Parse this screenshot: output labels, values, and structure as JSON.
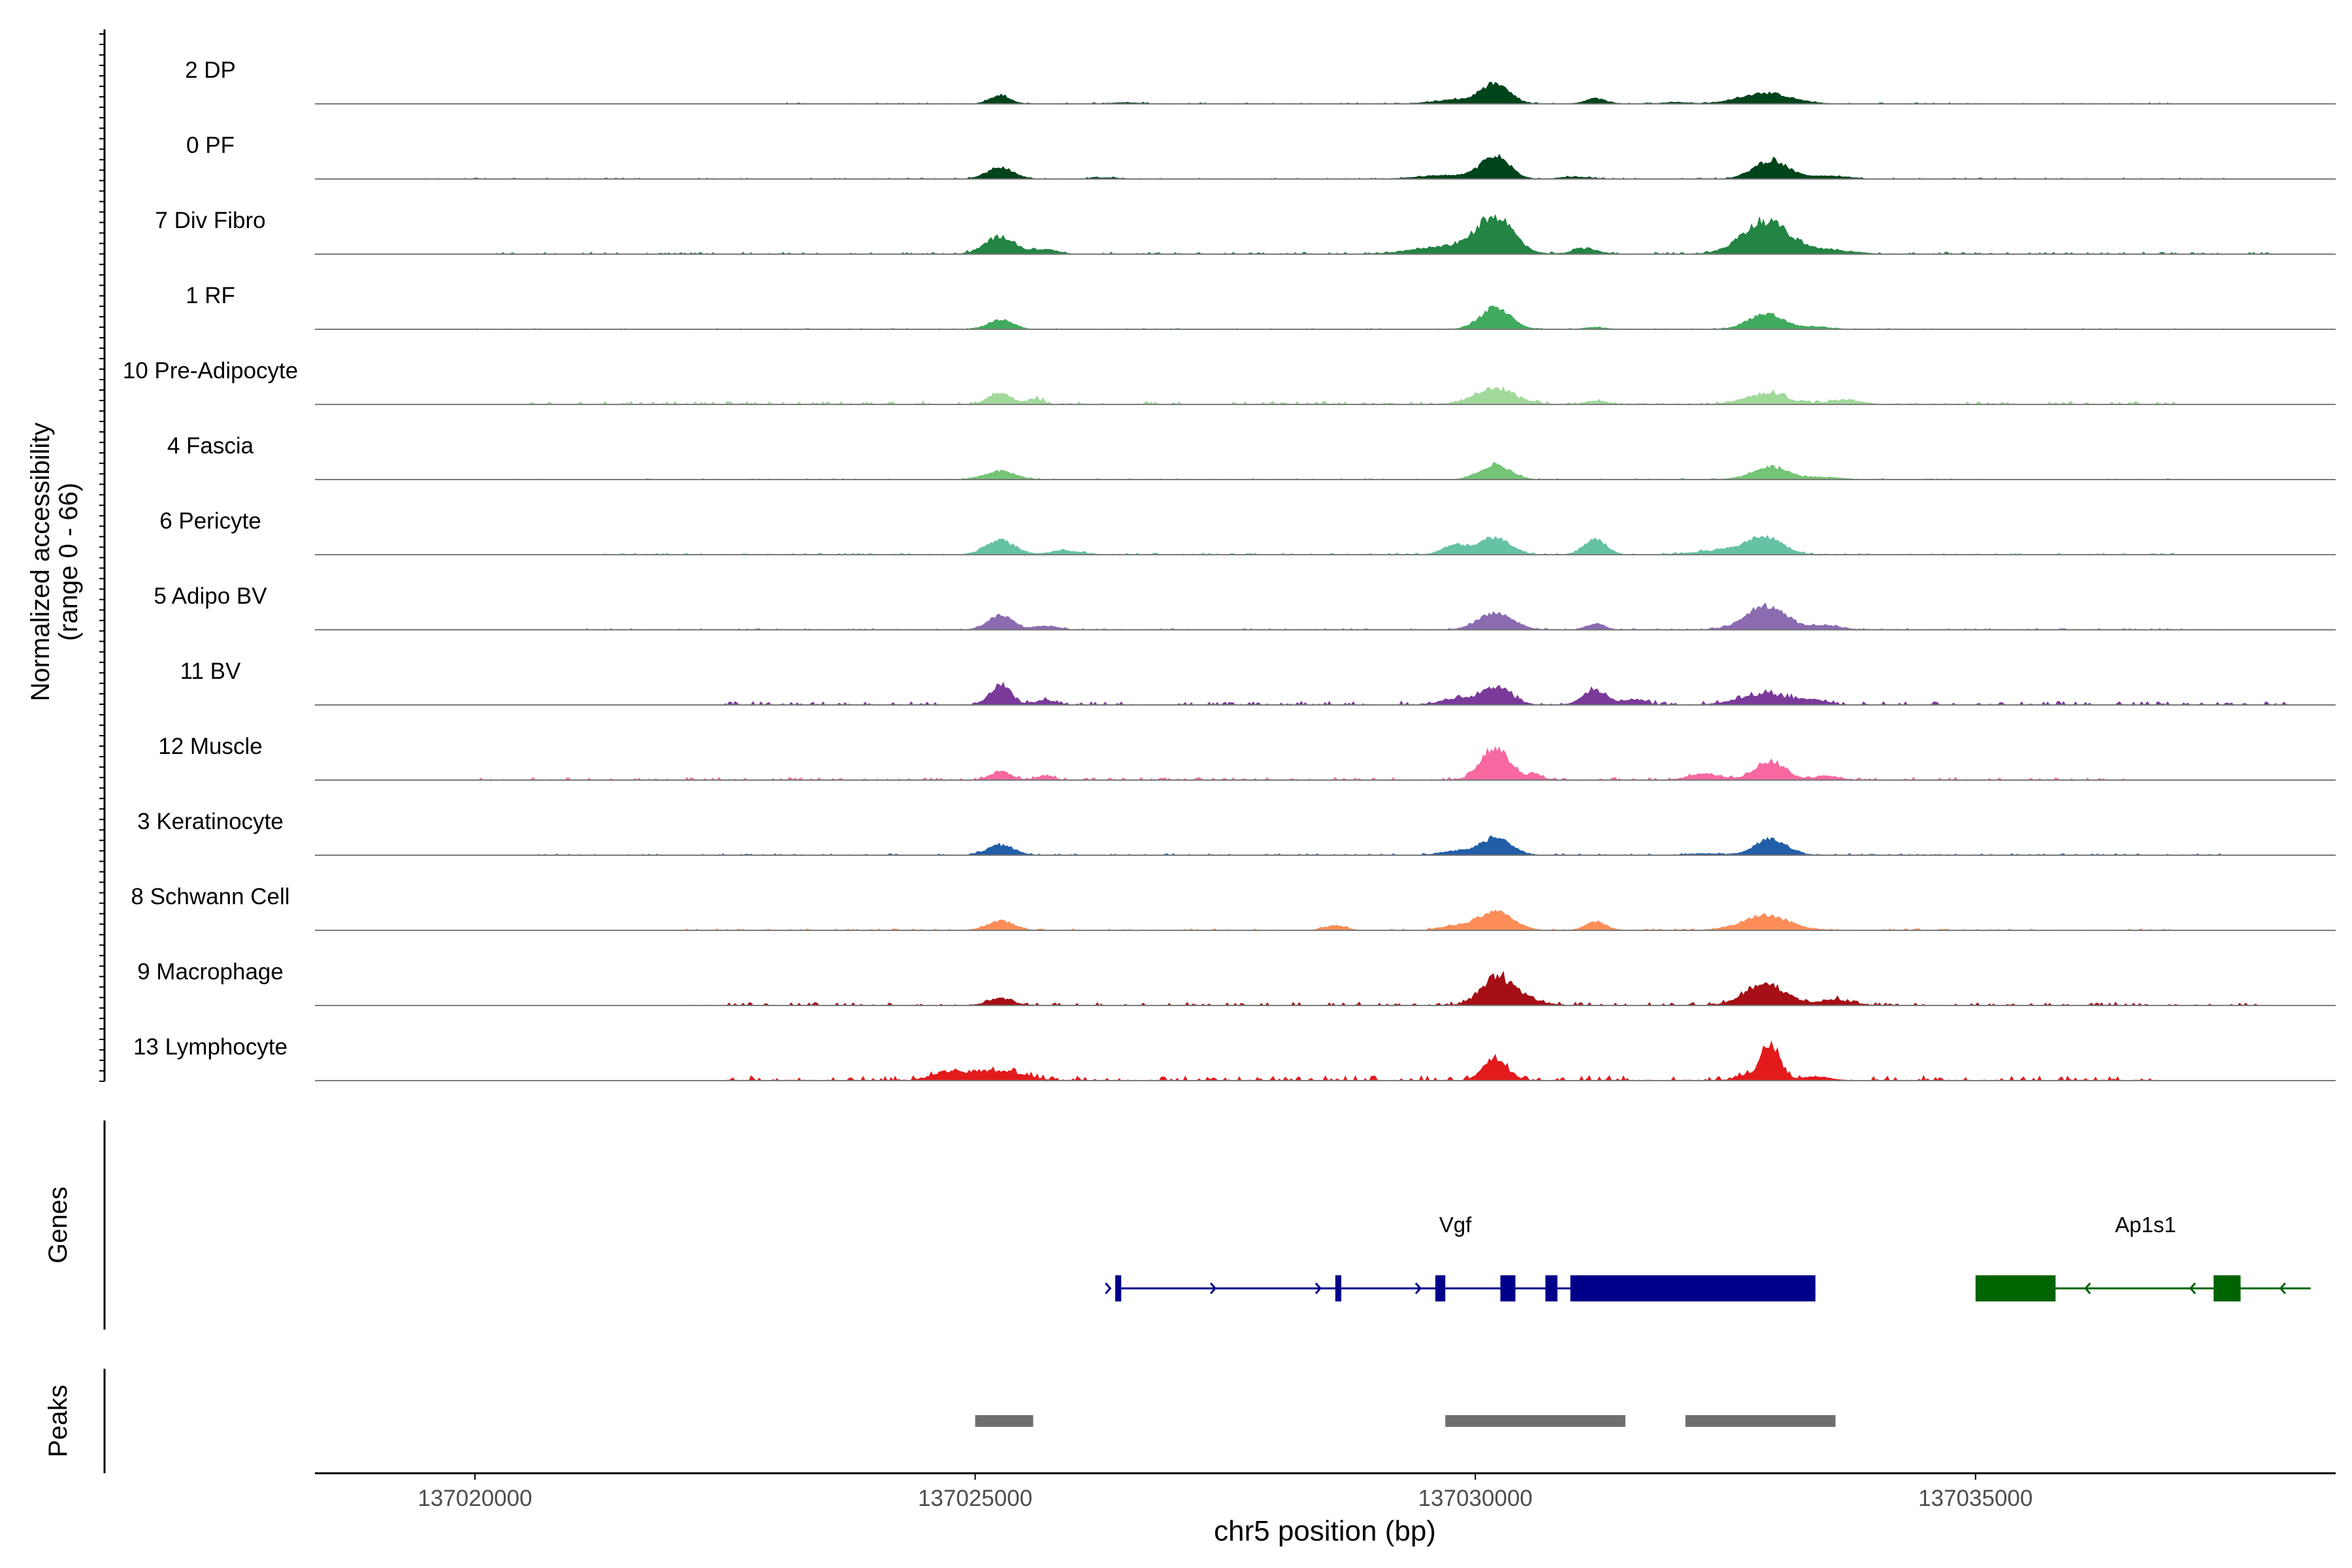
{
  "chart_data": {
    "type": "area",
    "title": "",
    "y_axis_label_line1": "Normalized accessibility",
    "y_axis_label_line2": "(range 0 - 66)",
    "y_range": [
      0,
      66
    ],
    "x_axis_label": "chr5 position (bp)",
    "x_range": [
      137018400,
      137038600
    ],
    "x_ticks": [
      {
        "value": 137020000,
        "label": "137020000"
      },
      {
        "value": 137025000,
        "label": "137025000"
      },
      {
        "value": 137030000,
        "label": "137030000"
      },
      {
        "value": 137035000,
        "label": "137035000"
      }
    ],
    "tracks": [
      {
        "name": "2 DP",
        "color": "#00441b",
        "peaks": [
          [
            137025250,
            0.22,
            100
          ],
          [
            137026500,
            0.03,
            150
          ],
          [
            137029800,
            0.1,
            220
          ],
          [
            137030200,
            0.5,
            140
          ],
          [
            137031200,
            0.14,
            100
          ],
          [
            137032000,
            0.04,
            120
          ],
          [
            137032900,
            0.28,
            250
          ]
        ],
        "noise": [
          137023000,
          137037000,
          0.02
        ]
      },
      {
        "name": "0 PF",
        "color": "#00441b",
        "peaks": [
          [
            137025250,
            0.3,
            130
          ],
          [
            137026300,
            0.03,
            150
          ],
          [
            137029700,
            0.1,
            250
          ],
          [
            137030200,
            0.6,
            140
          ],
          [
            137031000,
            0.05,
            150
          ],
          [
            137032950,
            0.48,
            170
          ],
          [
            137033500,
            0.08,
            200
          ]
        ],
        "noise": [
          137019500,
          137037500,
          0.02
        ]
      },
      {
        "name": "7 Div Fibro",
        "color": "#238443",
        "peaks": [
          [
            137025250,
            0.45,
            150
          ],
          [
            137025700,
            0.12,
            120
          ],
          [
            137029700,
            0.2,
            300
          ],
          [
            137030200,
            0.95,
            180
          ],
          [
            137031100,
            0.15,
            120
          ],
          [
            137032900,
            0.85,
            230
          ],
          [
            137033500,
            0.1,
            250
          ]
        ],
        "noise": [
          137020000,
          137038000,
          0.04
        ]
      },
      {
        "name": "1 RF",
        "color": "#41ab5d",
        "peaks": [
          [
            137025250,
            0.25,
            120
          ],
          [
            137030200,
            0.55,
            150
          ],
          [
            137031200,
            0.05,
            100
          ],
          [
            137032900,
            0.4,
            170
          ],
          [
            137033400,
            0.06,
            150
          ]
        ],
        "noise": [
          137020000,
          137037500,
          0.015
        ]
      },
      {
        "name": "10 Pre-Adipocyte",
        "color": "#a1d99b",
        "peaks": [
          [
            137025250,
            0.3,
            110
          ],
          [
            137025600,
            0.14,
            80
          ],
          [
            137030200,
            0.4,
            200
          ],
          [
            137031200,
            0.1,
            80
          ],
          [
            137032900,
            0.28,
            200
          ],
          [
            137033700,
            0.12,
            150
          ]
        ],
        "noise": [
          137020500,
          137037000,
          0.06
        ]
      },
      {
        "name": "4 Fascia",
        "color": "#74c476",
        "peaks": [
          [
            137025250,
            0.22,
            150
          ],
          [
            137030200,
            0.38,
            150
          ],
          [
            137032950,
            0.32,
            180
          ],
          [
            137033500,
            0.06,
            150
          ]
        ],
        "noise": [
          137020000,
          137037500,
          0.02
        ]
      },
      {
        "name": "6 Pericyte",
        "color": "#66c2a4",
        "peaks": [
          [
            137025250,
            0.38,
            140
          ],
          [
            137025900,
            0.1,
            150
          ],
          [
            137029800,
            0.25,
            120
          ],
          [
            137030200,
            0.45,
            150
          ],
          [
            137031200,
            0.4,
            110
          ],
          [
            137032600,
            0.14,
            300
          ],
          [
            137032900,
            0.38,
            170
          ]
        ],
        "noise": [
          137021000,
          137037000,
          0.03
        ]
      },
      {
        "name": "5 Adipo BV",
        "color": "#8c6bb1",
        "peaks": [
          [
            137025250,
            0.38,
            120
          ],
          [
            137025700,
            0.1,
            120
          ],
          [
            137030200,
            0.42,
            170
          ],
          [
            137031200,
            0.16,
            90
          ],
          [
            137032900,
            0.62,
            200
          ],
          [
            137033500,
            0.1,
            150
          ]
        ],
        "noise": [
          137021000,
          137037500,
          0.025
        ]
      },
      {
        "name": "11 BV",
        "color": "#7a3a9a",
        "peaks": [
          [
            137025250,
            0.52,
            100
          ],
          [
            137025700,
            0.12,
            100
          ],
          [
            137029800,
            0.15,
            150
          ],
          [
            137030200,
            0.45,
            150
          ],
          [
            137031200,
            0.38,
            120
          ],
          [
            137031600,
            0.14,
            100
          ],
          [
            137032900,
            0.28,
            250
          ],
          [
            137033400,
            0.1,
            120
          ]
        ],
        "noise": [
          137022500,
          137038200,
          0.07
        ]
      },
      {
        "name": "12 Muscle",
        "color": "#f768a1",
        "peaks": [
          [
            137025250,
            0.22,
            100
          ],
          [
            137025700,
            0.1,
            80
          ],
          [
            137030200,
            0.85,
            140
          ],
          [
            137030600,
            0.12,
            80
          ],
          [
            137032300,
            0.16,
            150
          ],
          [
            137032950,
            0.48,
            150
          ],
          [
            137033500,
            0.1,
            120
          ]
        ],
        "noise": [
          137020000,
          137036500,
          0.05
        ]
      },
      {
        "name": "3 Keratinocyte",
        "color": "#225ea8",
        "peaks": [
          [
            137025250,
            0.26,
            130
          ],
          [
            137029800,
            0.1,
            150
          ],
          [
            137030200,
            0.45,
            150
          ],
          [
            137032300,
            0.04,
            150
          ],
          [
            137032950,
            0.42,
            160
          ]
        ],
        "noise": [
          137020500,
          137037500,
          0.03
        ]
      },
      {
        "name": "8 Schwann Cell",
        "color": "#fc8d59",
        "peaks": [
          [
            137025250,
            0.24,
            130
          ],
          [
            137028600,
            0.12,
            100
          ],
          [
            137029800,
            0.1,
            150
          ],
          [
            137030200,
            0.5,
            170
          ],
          [
            137031200,
            0.22,
            100
          ],
          [
            137032900,
            0.38,
            230
          ]
        ],
        "noise": [
          137022000,
          137037000,
          0.03
        ]
      },
      {
        "name": "9 Macrophage",
        "color": "#a50f15",
        "peaks": [
          [
            137025250,
            0.18,
            120
          ],
          [
            137030200,
            0.62,
            150
          ],
          [
            137030400,
            0.2,
            200
          ],
          [
            137032900,
            0.55,
            200
          ],
          [
            137033600,
            0.14,
            150
          ]
        ],
        "noise": [
          137022200,
          137037800,
          0.06
        ]
      },
      {
        "name": "13 Lymphocyte",
        "color": "#e31a1c",
        "peaks": [
          [
            137025200,
            0.26,
            250
          ],
          [
            137024700,
            0.18,
            150
          ],
          [
            137030200,
            0.55,
            120
          ],
          [
            137032950,
            1.0,
            90
          ],
          [
            137032700,
            0.14,
            100
          ],
          [
            137033400,
            0.1,
            150
          ]
        ],
        "noise": [
          137022500,
          137036800,
          0.09
        ]
      }
    ],
    "genes_label": "Genes",
    "genes": [
      {
        "name": "Vgf",
        "color": "#00008b",
        "strand": "+",
        "start": 137026400,
        "end": 137033400,
        "label_pos": 137029800,
        "exons": [
          [
            137026400,
            137026460
          ],
          [
            137028600,
            137028660
          ],
          [
            137029600,
            137029700
          ],
          [
            137030250,
            137030400
          ],
          [
            137030700,
            137030820
          ],
          [
            137030950,
            137033400
          ]
        ]
      },
      {
        "name": "Ap1s1",
        "color": "#006400",
        "strand": "-",
        "start": 137035000,
        "end": 137038350,
        "label_pos": 137036700,
        "exons": [
          [
            137035000,
            137035800
          ],
          [
            137037380,
            137037650
          ]
        ]
      }
    ],
    "peaks_label": "Peaks",
    "peak_regions": [
      [
        137025000,
        137025580
      ],
      [
        137029700,
        137031500
      ],
      [
        137032100,
        137033600
      ]
    ],
    "peak_color": "#6e6e6e"
  }
}
